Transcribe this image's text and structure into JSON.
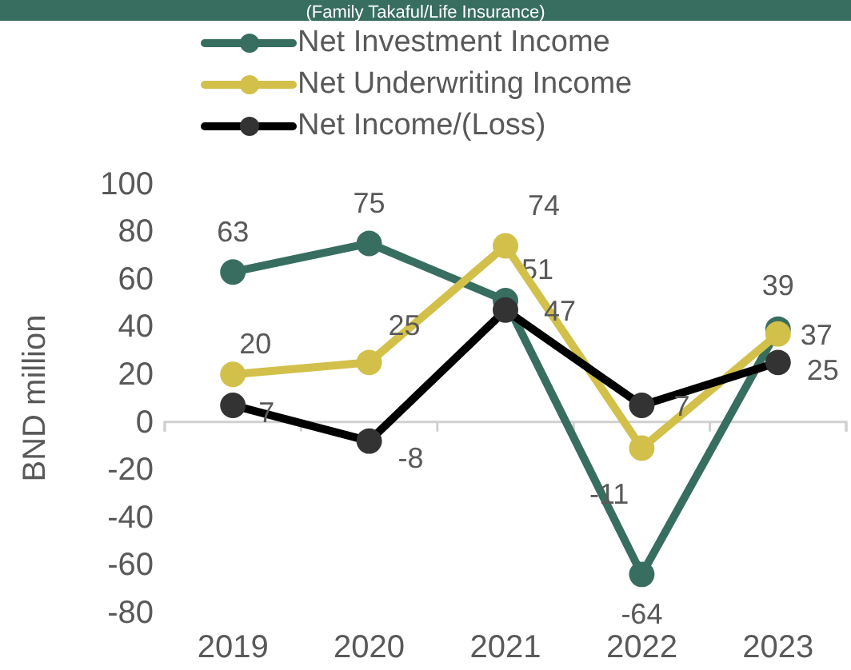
{
  "chart_data": {
    "type": "line",
    "title": "(Family Takaful/Life Insurance)",
    "ylabel": "BND million",
    "categories": [
      "2019",
      "2020",
      "2021",
      "2022",
      "2023"
    ],
    "series": [
      {
        "name": "Net Investment Income",
        "color": "#386e60",
        "values": [
          63,
          75,
          51,
          -64,
          39
        ]
      },
      {
        "name": "Net Underwriting Income",
        "color": "#d2c04a",
        "values": [
          20,
          25,
          74,
          -11,
          37
        ]
      },
      {
        "name": "Net Income/(Loss)",
        "color": "#000000",
        "values": [
          7,
          -8,
          47,
          7,
          25
        ]
      }
    ],
    "ref_lines": [
      {
        "axis": "y",
        "value": 0,
        "color": "#d0d0d0"
      }
    ],
    "ylim": [
      -80,
      100
    ],
    "yticks": [
      -80,
      -60,
      -40,
      -20,
      0,
      20,
      40,
      60,
      80,
      100
    ],
    "grid": false,
    "legend": "top",
    "marker": "circle",
    "line_style": "solid",
    "data_labels": true
  }
}
